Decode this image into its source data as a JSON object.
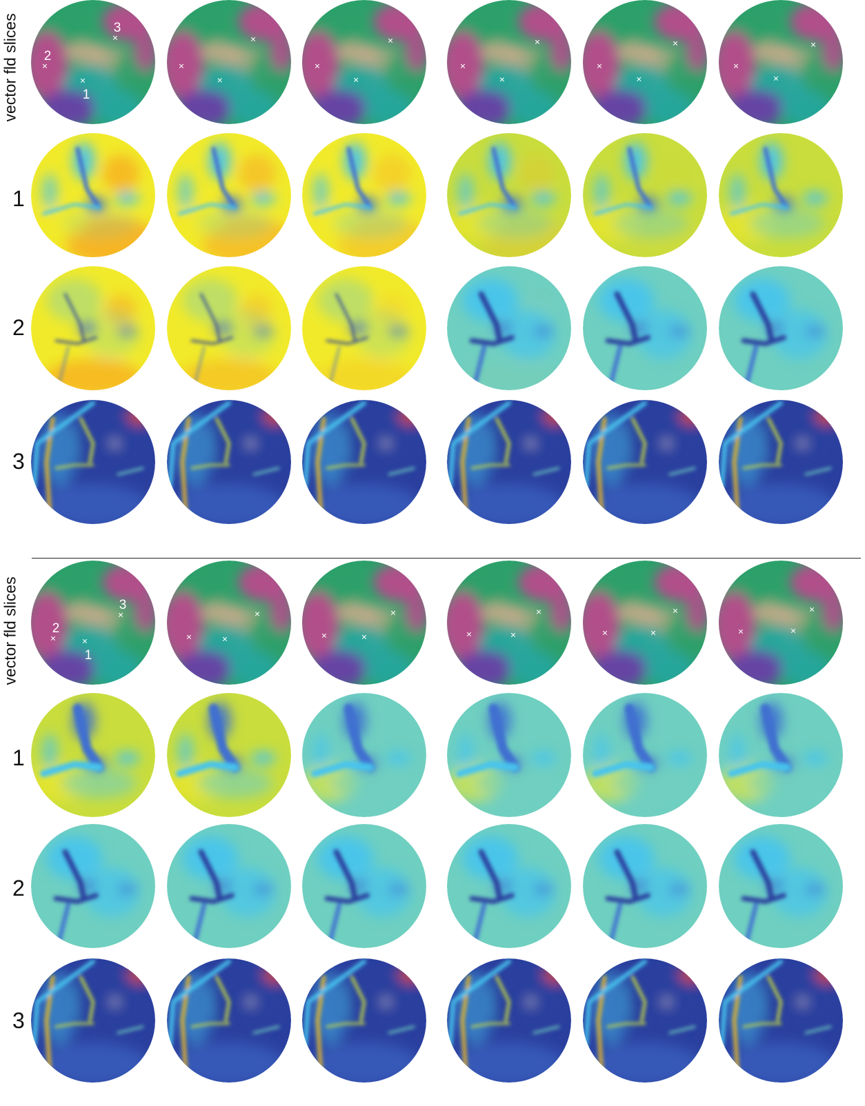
{
  "figure": {
    "blocks": [
      {
        "name": "top",
        "row_labels": [
          "vector fld slices",
          "1",
          "2",
          "3"
        ],
        "point_markers": [
          {
            "label": "1",
            "symbol": "×"
          },
          {
            "label": "2",
            "symbol": "×"
          },
          {
            "label": "3",
            "symbol": "×"
          }
        ]
      },
      {
        "name": "bottom",
        "row_labels": [
          "vector fld slices",
          "1",
          "2",
          "3"
        ],
        "point_markers": [
          {
            "label": "1",
            "symbol": "×"
          },
          {
            "label": "2",
            "symbol": "×"
          },
          {
            "label": "3",
            "symbol": "×"
          }
        ]
      }
    ],
    "columns": 6,
    "row_types": [
      "vector-field",
      "scalar-1",
      "scalar-2",
      "scalar-3"
    ],
    "colormap": [
      "#2a3f9e",
      "#3f6fd0",
      "#46c4ee",
      "#6fcfc0",
      "#c9dd3c",
      "#f1ea2a",
      "#f7b023",
      "#e2471d",
      "#b0141d"
    ],
    "vector_field_colors": [
      "#c0458e",
      "#2ca06a",
      "#26a6a0",
      "#6c3aa8",
      "#c8ab8a"
    ]
  }
}
